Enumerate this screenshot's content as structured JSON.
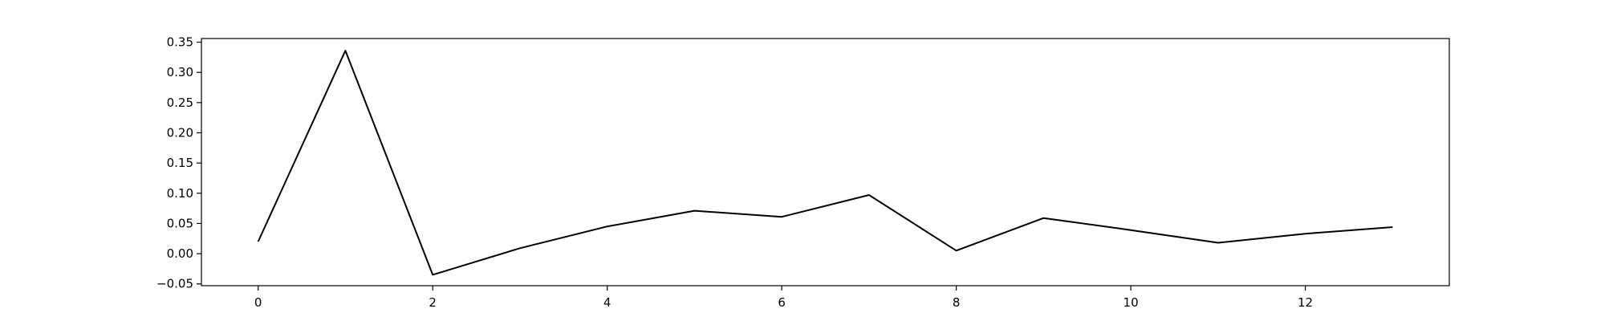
{
  "chart_data": {
    "type": "line",
    "title": "",
    "xlabel": "",
    "ylabel": "",
    "grid": false,
    "legend": false,
    "xlim": [
      -0.65,
      13.65
    ],
    "ylim": [
      -0.053,
      0.356
    ],
    "x_ticks": [
      0,
      2,
      4,
      6,
      8,
      10,
      12
    ],
    "x_tick_labels": [
      "0",
      "2",
      "4",
      "6",
      "8",
      "10",
      "12"
    ],
    "y_ticks": [
      -0.05,
      0.0,
      0.05,
      0.1,
      0.15,
      0.2,
      0.25,
      0.3,
      0.35
    ],
    "y_tick_labels": [
      "−0.05",
      "0.00",
      "0.05",
      "0.10",
      "0.15",
      "0.20",
      "0.25",
      "0.30",
      "0.35"
    ],
    "series": [
      {
        "color": "#000000",
        "x": [
          0,
          1,
          2,
          3,
          4,
          5,
          6,
          7,
          8,
          9,
          10,
          11,
          12,
          13
        ],
        "values": [
          0.02,
          0.336,
          -0.035,
          0.009,
          0.045,
          0.071,
          0.061,
          0.097,
          0.005,
          0.059,
          0.039,
          0.018,
          0.033,
          0.044
        ]
      }
    ]
  }
}
